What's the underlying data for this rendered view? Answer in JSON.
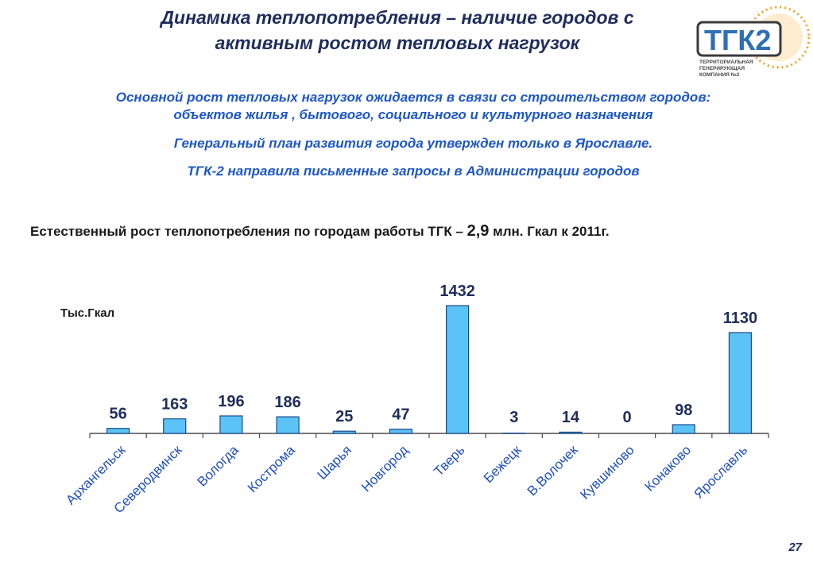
{
  "header": {
    "title_line1": "Динамика теплопотребления – наличие городов с",
    "title_line2": "активным ростом тепловых нагрузок"
  },
  "logo": {
    "mark": "ТГК2",
    "text_line1": "ТЕРРИТОРИАЛЬНАЯ",
    "text_line2": "ГЕНЕРИРУЮЩАЯ",
    "text_line3": "КОМПАНИЯ №2"
  },
  "bullets": {
    "b1_line1": "Основной рост тепловых нагрузок ожидается в связи со строительством городов:",
    "b1_line2": "объектов жилья , бытового, социального и культурного назначения",
    "b2": "Генеральный план развития города утвержден только в Ярославле.",
    "b3": "ТГК-2 направила письменные запросы в Администрации городов"
  },
  "subtitle": {
    "prefix": "Естественный рост теплопотребления по городам работы ТГК – ",
    "value": "2,9",
    "suffix": " млн. Гкал к 2011г."
  },
  "chart_data": {
    "type": "bar",
    "ylabel": "Тыс.Гкал",
    "categories": [
      "Архангельск",
      "Северодвинск",
      "Вологда",
      "Кострома",
      "Шарья",
      "Новгород",
      "Тверь",
      "Бежецк",
      "В.Волочек",
      "Кувшиново",
      "Конаково",
      "Ярославль"
    ],
    "values": [
      56,
      163,
      196,
      186,
      25,
      47,
      1432,
      3,
      14,
      0,
      98,
      1130
    ],
    "ylim": [
      0,
      1500
    ],
    "grid": false,
    "bar_color": "#5bc3f5",
    "bar_stroke": "#1b4a8c",
    "label_color": "#1f2d5c"
  },
  "page": {
    "number": "27"
  }
}
